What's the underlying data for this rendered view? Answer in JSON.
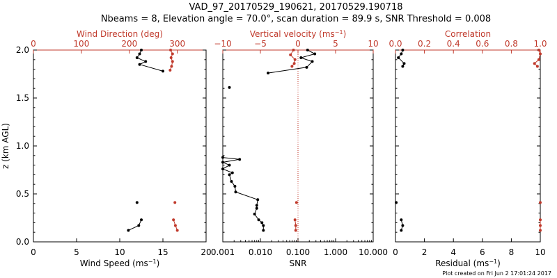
{
  "header": {
    "title_line1": "VAD_97_20170529_190621, 20170529.190718",
    "title_line2": "Nbeams = 8, Elevation angle = 70.0°, scan duration = 89.9 s, SNR Threshold = 0.008"
  },
  "footer": {
    "created": "Plot created on Fri Jun  2 17:01:24 2017"
  },
  "colors": {
    "black": "#000000",
    "red": "#c0392b"
  },
  "chart_data": [
    {
      "type": "line",
      "panel": "wind",
      "ylabel": "z (km AGL)",
      "ylim": [
        0,
        2
      ],
      "yticks": [
        "0.0",
        "0.5",
        "1.0",
        "1.5",
        "2.0"
      ],
      "bottom_axis": {
        "label_text": "Wind Speed (ms",
        "label_sup": "−1",
        "label_close": ")",
        "range": [
          0,
          20
        ],
        "ticks": [
          "0",
          "5",
          "10",
          "15",
          "20"
        ]
      },
      "top_axis": {
        "label": "Wind Direction (deg)",
        "range": [
          0,
          360
        ],
        "ticks": [
          "0",
          "100",
          "200",
          "300"
        ]
      },
      "series": [
        {
          "axis": "bottom",
          "color": "black",
          "points": [
            [
              15.0,
              1.78
            ],
            [
              12.3,
              1.85
            ],
            [
              13.0,
              1.88
            ],
            [
              12.0,
              1.92
            ],
            [
              12.3,
              1.96
            ],
            [
              12.5,
              2.0
            ]
          ],
          "isolated": [
            [
              12.0,
              0.41
            ]
          ],
          "lower": [
            [
              11.0,
              0.12
            ],
            [
              12.2,
              0.17
            ],
            [
              12.5,
              0.23
            ]
          ]
        },
        {
          "axis": "top",
          "color": "red",
          "points": [
            [
              285,
              1.79
            ],
            [
              288,
              1.83
            ],
            [
              290,
              1.88
            ],
            [
              287,
              1.92
            ],
            [
              290,
              1.96
            ],
            [
              286,
              2.0
            ]
          ],
          "isolated": [
            [
              295,
              0.41
            ]
          ],
          "lower": [
            [
              300,
              0.12
            ],
            [
              296,
              0.17
            ],
            [
              292,
              0.23
            ]
          ]
        }
      ]
    },
    {
      "type": "line",
      "panel": "snr",
      "ylim": [
        0,
        2
      ],
      "bottom_axis": {
        "label": "SNR",
        "scale": "log",
        "range": [
          0.001,
          10
        ],
        "ticks": [
          "0.001",
          "0.010",
          "0.100",
          "1.000",
          "10.000"
        ]
      },
      "top_axis": {
        "label_text": "Vertical velocity (ms",
        "label_sup": "−1",
        "label_close": ")",
        "range": [
          -10,
          10
        ],
        "ticks": [
          "−10",
          "−5",
          "0",
          "5",
          "10"
        ],
        "reference_line": 0
      },
      "series": [
        {
          "axis": "bottom",
          "color": "black",
          "points": [
            [
              0.012,
              0.12
            ],
            [
              0.012,
              0.17
            ],
            [
              0.011,
              0.2
            ],
            [
              0.009,
              0.23
            ],
            [
              0.007,
              0.29
            ],
            [
              0.008,
              0.35
            ],
            [
              0.008,
              0.38
            ],
            [
              0.0085,
              0.44
            ],
            [
              0.0022,
              0.52
            ],
            [
              0.0021,
              0.58
            ],
            [
              0.0017,
              0.63
            ],
            [
              0.0015,
              0.7
            ],
            [
              0.0018,
              0.72
            ],
            [
              0.001,
              0.76
            ],
            [
              0.0015,
              0.8
            ],
            [
              0.001,
              0.83
            ],
            [
              0.0028,
              0.86
            ],
            [
              0.001,
              0.88
            ]
          ],
          "isolated": [
            [
              0.0015,
              1.61
            ]
          ],
          "upper": [
            [
              0.016,
              1.76
            ],
            [
              0.17,
              1.82
            ],
            [
              0.24,
              1.88
            ],
            [
              0.12,
              1.92
            ],
            [
              0.28,
              1.96
            ],
            [
              0.18,
              2.0
            ]
          ]
        },
        {
          "axis": "top",
          "color": "red",
          "points": [
            [
              -0.3,
              0.12
            ],
            [
              -0.3,
              0.17
            ],
            [
              -0.4,
              0.23
            ]
          ],
          "isolated": [
            [
              -0.2,
              0.41
            ]
          ],
          "upper": [
            [
              -0.8,
              1.83
            ],
            [
              -0.5,
              1.86
            ],
            [
              -0.4,
              1.9
            ],
            [
              -1.0,
              1.95
            ],
            [
              -0.6,
              2.0
            ]
          ]
        }
      ]
    },
    {
      "type": "line",
      "panel": "residual",
      "ylim": [
        0,
        2
      ],
      "bottom_axis": {
        "label_text": "Residual (ms",
        "label_sup": "−1",
        "label_close": ")",
        "range": [
          0,
          10
        ],
        "ticks": [
          "0",
          "2",
          "4",
          "6",
          "8",
          "10"
        ]
      },
      "top_axis": {
        "label": "Correlation",
        "range": [
          0,
          1
        ],
        "ticks": [
          "0.0",
          "0.2",
          "0.4",
          "0.6",
          "0.8",
          "1.0"
        ]
      },
      "series": [
        {
          "axis": "bottom",
          "color": "black",
          "points": [
            [
              0.5,
              1.83
            ],
            [
              0.6,
              1.86
            ],
            [
              0.2,
              1.92
            ],
            [
              0.4,
              1.96
            ],
            [
              0.5,
              2.0
            ]
          ],
          "isolated": [
            [
              0.05,
              0.41
            ]
          ],
          "lower": [
            [
              0.4,
              0.12
            ],
            [
              0.5,
              0.17
            ],
            [
              0.4,
              0.23
            ]
          ]
        },
        {
          "axis": "top",
          "color": "red",
          "points": [
            [
              0.98,
              1.83
            ],
            [
              0.96,
              1.86
            ],
            [
              0.99,
              1.9
            ],
            [
              1.0,
              1.96
            ],
            [
              0.99,
              2.0
            ]
          ],
          "isolated": [
            [
              1.0,
              0.41
            ]
          ],
          "lower": [
            [
              1.0,
              0.12
            ],
            [
              1.0,
              0.17
            ],
            [
              1.0,
              0.23
            ]
          ]
        }
      ]
    }
  ]
}
